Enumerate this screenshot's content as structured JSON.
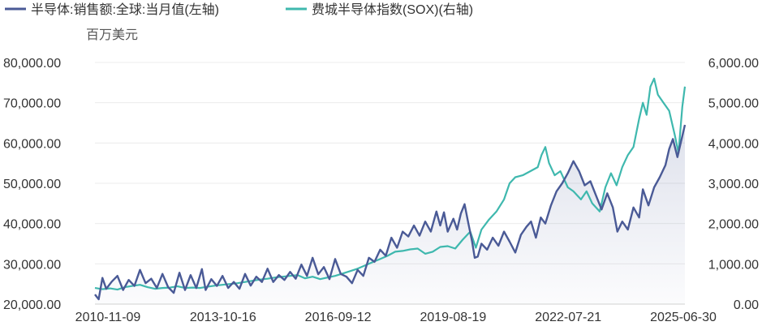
{
  "chart_data": {
    "type": "line",
    "unit_label": "百万美元",
    "x_ticks": [
      "2010-11-09",
      "2013-10-16",
      "2016-09-12",
      "2019-08-19",
      "2022-07-21",
      "2025-06-30"
    ],
    "y_left": {
      "ticks": [
        "20,000.00",
        "30,000.00",
        "40,000.00",
        "50,000.00",
        "60,000.00",
        "70,000.00",
        "80,000.00"
      ],
      "range": [
        20000,
        80000
      ]
    },
    "y_right": {
      "ticks": [
        "0.00",
        "1,000.00",
        "2,000.00",
        "3,000.00",
        "4,000.00",
        "5,000.00",
        "6,000.00"
      ],
      "range": [
        0,
        6000
      ]
    },
    "x_range": [
      2010.0,
      2025.72
    ],
    "grid": true,
    "legend_position": "top-left",
    "series": [
      {
        "name": "半导体:销售额:全球:当月值(左轴)",
        "axis": "left",
        "color": "#4a5a96",
        "area": true,
        "points": [
          [
            2010.0,
            22400
          ],
          [
            2010.1,
            21200
          ],
          [
            2010.2,
            26500
          ],
          [
            2010.3,
            23800
          ],
          [
            2010.45,
            25600
          ],
          [
            2010.6,
            27000
          ],
          [
            2010.75,
            23500
          ],
          [
            2010.9,
            26000
          ],
          [
            2011.05,
            24500
          ],
          [
            2011.2,
            28500
          ],
          [
            2011.35,
            25200
          ],
          [
            2011.5,
            26300
          ],
          [
            2011.65,
            24000
          ],
          [
            2011.8,
            27500
          ],
          [
            2011.95,
            24200
          ],
          [
            2012.1,
            22800
          ],
          [
            2012.25,
            27800
          ],
          [
            2012.4,
            23500
          ],
          [
            2012.55,
            27200
          ],
          [
            2012.7,
            24000
          ],
          [
            2012.85,
            28700
          ],
          [
            2012.95,
            23500
          ],
          [
            2013.1,
            26200
          ],
          [
            2013.25,
            24500
          ],
          [
            2013.4,
            27000
          ],
          [
            2013.55,
            24000
          ],
          [
            2013.7,
            25500
          ],
          [
            2013.85,
            23800
          ],
          [
            2014.0,
            27500
          ],
          [
            2014.15,
            24600
          ],
          [
            2014.3,
            26800
          ],
          [
            2014.45,
            25500
          ],
          [
            2014.6,
            28800
          ],
          [
            2014.75,
            25500
          ],
          [
            2014.9,
            27200
          ],
          [
            2015.05,
            26000
          ],
          [
            2015.2,
            28000
          ],
          [
            2015.35,
            26300
          ],
          [
            2015.5,
            29800
          ],
          [
            2015.65,
            27000
          ],
          [
            2015.8,
            31500
          ],
          [
            2015.95,
            27400
          ],
          [
            2016.1,
            29200
          ],
          [
            2016.25,
            26200
          ],
          [
            2016.4,
            31200
          ],
          [
            2016.55,
            27500
          ],
          [
            2016.7,
            26800
          ],
          [
            2016.85,
            25200
          ],
          [
            2017.0,
            28500
          ],
          [
            2017.15,
            27000
          ],
          [
            2017.3,
            31500
          ],
          [
            2017.45,
            30500
          ],
          [
            2017.6,
            33500
          ],
          [
            2017.75,
            32000
          ],
          [
            2017.9,
            36500
          ],
          [
            2018.05,
            34000
          ],
          [
            2018.2,
            38000
          ],
          [
            2018.35,
            36800
          ],
          [
            2018.5,
            39500
          ],
          [
            2018.65,
            37000
          ],
          [
            2018.8,
            40500
          ],
          [
            2018.95,
            38000
          ],
          [
            2019.1,
            43000
          ],
          [
            2019.2,
            39500
          ],
          [
            2019.3,
            42800
          ],
          [
            2019.4,
            38000
          ],
          [
            2019.55,
            41200
          ],
          [
            2019.65,
            38500
          ],
          [
            2019.75,
            42500
          ],
          [
            2019.85,
            44800
          ],
          [
            2019.95,
            40000
          ],
          [
            2020.05,
            35500
          ],
          [
            2020.12,
            31500
          ],
          [
            2020.2,
            31800
          ],
          [
            2020.3,
            35000
          ],
          [
            2020.45,
            33500
          ],
          [
            2020.6,
            36500
          ],
          [
            2020.75,
            34500
          ],
          [
            2020.9,
            38000
          ],
          [
            2021.05,
            35500
          ],
          [
            2021.2,
            32800
          ],
          [
            2021.35,
            37200
          ],
          [
            2021.5,
            39200
          ],
          [
            2021.62,
            40500
          ],
          [
            2021.75,
            36500
          ],
          [
            2021.88,
            41500
          ],
          [
            2022.0,
            40000
          ],
          [
            2022.15,
            44500
          ],
          [
            2022.3,
            48000
          ],
          [
            2022.45,
            50000
          ],
          [
            2022.6,
            52500
          ],
          [
            2022.75,
            55500
          ],
          [
            2022.9,
            53000
          ],
          [
            2023.05,
            49500
          ],
          [
            2023.2,
            50500
          ],
          [
            2023.35,
            47000
          ],
          [
            2023.5,
            43500
          ],
          [
            2023.65,
            47500
          ],
          [
            2023.8,
            44000
          ],
          [
            2023.92,
            38000
          ],
          [
            2024.05,
            40500
          ],
          [
            2024.2,
            38500
          ],
          [
            2024.35,
            44000
          ],
          [
            2024.5,
            41500
          ],
          [
            2024.6,
            48500
          ],
          [
            2024.75,
            44500
          ],
          [
            2024.9,
            49000
          ],
          [
            2025.05,
            51500
          ],
          [
            2025.2,
            54500
          ],
          [
            2025.3,
            58500
          ],
          [
            2025.4,
            61000
          ],
          [
            2025.52,
            56500
          ],
          [
            2025.62,
            60500
          ],
          [
            2025.72,
            64500
          ]
        ]
      },
      {
        "name": "费城半导体指数(SOX)(右轴)",
        "axis": "right",
        "color": "#3fb8ae",
        "area": false,
        "points": [
          [
            2010.0,
            400
          ],
          [
            2010.2,
            370
          ],
          [
            2010.4,
            390
          ],
          [
            2010.6,
            360
          ],
          [
            2010.8,
            420
          ],
          [
            2011.0,
            450
          ],
          [
            2011.2,
            480
          ],
          [
            2011.4,
            420
          ],
          [
            2011.6,
            380
          ],
          [
            2011.8,
            400
          ],
          [
            2012.0,
            410
          ],
          [
            2012.2,
            440
          ],
          [
            2012.4,
            400
          ],
          [
            2012.6,
            410
          ],
          [
            2012.8,
            400
          ],
          [
            2013.0,
            430
          ],
          [
            2013.2,
            460
          ],
          [
            2013.4,
            480
          ],
          [
            2013.6,
            500
          ],
          [
            2013.8,
            520
          ],
          [
            2014.0,
            550
          ],
          [
            2014.2,
            580
          ],
          [
            2014.4,
            610
          ],
          [
            2014.6,
            630
          ],
          [
            2014.8,
            660
          ],
          [
            2015.0,
            680
          ],
          [
            2015.2,
            700
          ],
          [
            2015.4,
            720
          ],
          [
            2015.6,
            640
          ],
          [
            2015.8,
            680
          ],
          [
            2016.0,
            620
          ],
          [
            2016.2,
            660
          ],
          [
            2016.4,
            700
          ],
          [
            2016.6,
            760
          ],
          [
            2016.8,
            820
          ],
          [
            2017.0,
            880
          ],
          [
            2017.2,
            960
          ],
          [
            2017.4,
            1040
          ],
          [
            2017.6,
            1120
          ],
          [
            2017.8,
            1200
          ],
          [
            2018.0,
            1300
          ],
          [
            2018.2,
            1320
          ],
          [
            2018.4,
            1360
          ],
          [
            2018.6,
            1380
          ],
          [
            2018.8,
            1250
          ],
          [
            2019.0,
            1300
          ],
          [
            2019.2,
            1420
          ],
          [
            2019.4,
            1440
          ],
          [
            2019.6,
            1380
          ],
          [
            2019.8,
            1600
          ],
          [
            2020.0,
            1800
          ],
          [
            2020.15,
            1400
          ],
          [
            2020.3,
            1850
          ],
          [
            2020.5,
            2100
          ],
          [
            2020.7,
            2300
          ],
          [
            2020.9,
            2600
          ],
          [
            2021.05,
            3000
          ],
          [
            2021.2,
            3150
          ],
          [
            2021.4,
            3200
          ],
          [
            2021.6,
            3300
          ],
          [
            2021.8,
            3400
          ],
          [
            2021.9,
            3700
          ],
          [
            2022.0,
            3900
          ],
          [
            2022.1,
            3500
          ],
          [
            2022.25,
            3200
          ],
          [
            2022.4,
            3300
          ],
          [
            2022.6,
            2900
          ],
          [
            2022.75,
            2800
          ],
          [
            2022.95,
            2600
          ],
          [
            2023.1,
            2800
          ],
          [
            2023.25,
            2500
          ],
          [
            2023.45,
            2300
          ],
          [
            2023.6,
            2900
          ],
          [
            2023.75,
            3250
          ],
          [
            2023.9,
            2950
          ],
          [
            2024.05,
            3400
          ],
          [
            2024.2,
            3700
          ],
          [
            2024.35,
            3900
          ],
          [
            2024.5,
            4600
          ],
          [
            2024.6,
            5000
          ],
          [
            2024.7,
            4700
          ],
          [
            2024.8,
            5400
          ],
          [
            2024.9,
            5600
          ],
          [
            2025.0,
            5200
          ],
          [
            2025.15,
            5000
          ],
          [
            2025.3,
            4800
          ],
          [
            2025.45,
            4200
          ],
          [
            2025.55,
            3750
          ],
          [
            2025.65,
            4900
          ],
          [
            2025.72,
            5400
          ]
        ]
      }
    ]
  }
}
